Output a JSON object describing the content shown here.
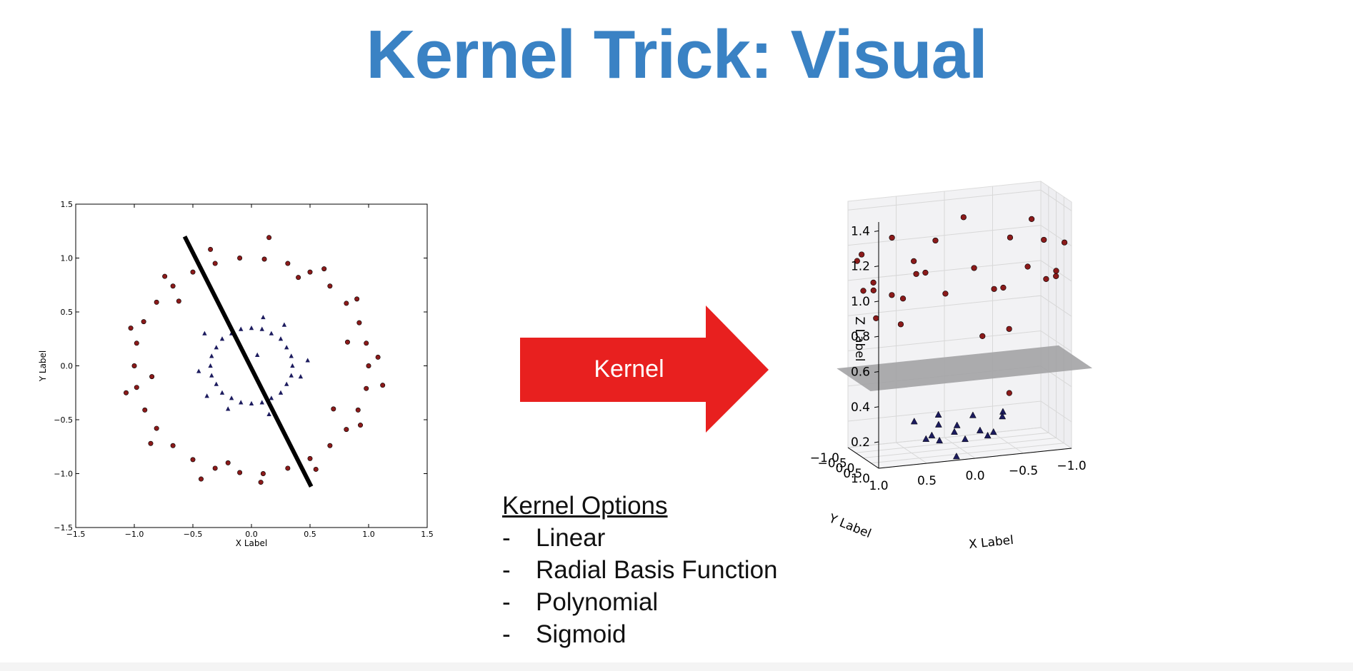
{
  "title": "Kernel Trick: Visual",
  "arrow": {
    "label": "Kernel",
    "color": "#e8201f"
  },
  "kernel_options": {
    "header": "Kernel Options",
    "bullet": "-",
    "items": [
      "Linear",
      "Radial Basis Function",
      "Polynomial",
      "Sigmoid"
    ]
  },
  "colors": {
    "title": "#3a82c4",
    "outer_class": "#8b1a1a",
    "inner_class": "#1c1b5e",
    "plane": "#a3a3a5"
  },
  "chart_data": [
    {
      "type": "scatter",
      "title": "",
      "xlabel": "X Label",
      "ylabel": "Y Label",
      "xlim": [
        -1.5,
        1.5
      ],
      "ylim": [
        -1.5,
        1.5
      ],
      "xticks": [
        "−1.5",
        "−1.0",
        "−0.5",
        "0.0",
        "0.5",
        "1.0",
        "1.5"
      ],
      "yticks": [
        "1.5",
        "1.0",
        "0.5",
        "0.0",
        "−0.5",
        "−1.0",
        "−1.5"
      ],
      "grid": false,
      "series": [
        {
          "marker": "circle",
          "color": "#8b1a1a",
          "points": [
            [
              1.0,
              0.0
            ],
            [
              0.98,
              0.21
            ],
            [
              0.92,
              0.4
            ],
            [
              0.81,
              0.58
            ],
            [
              0.67,
              0.74
            ],
            [
              0.5,
              0.87
            ],
            [
              0.31,
              0.95
            ],
            [
              0.11,
              0.99
            ],
            [
              -0.1,
              1.0
            ],
            [
              -0.31,
              0.95
            ],
            [
              -0.5,
              0.87
            ],
            [
              -0.67,
              0.74
            ],
            [
              -0.81,
              0.59
            ],
            [
              -0.92,
              0.41
            ],
            [
              -0.98,
              0.21
            ],
            [
              -1.0,
              0.0
            ],
            [
              -0.98,
              -0.2
            ],
            [
              -0.91,
              -0.41
            ],
            [
              -0.81,
              -0.58
            ],
            [
              -0.67,
              -0.74
            ],
            [
              -0.5,
              -0.87
            ],
            [
              -0.31,
              -0.95
            ],
            [
              -0.1,
              -0.99
            ],
            [
              0.1,
              -1.0
            ],
            [
              0.31,
              -0.95
            ],
            [
              0.5,
              -0.86
            ],
            [
              0.67,
              -0.74
            ],
            [
              0.81,
              -0.59
            ],
            [
              0.91,
              -0.41
            ],
            [
              0.98,
              -0.21
            ],
            [
              1.08,
              0.08
            ],
            [
              0.9,
              0.62
            ],
            [
              0.62,
              0.9
            ],
            [
              0.15,
              1.19
            ],
            [
              -0.35,
              1.08
            ],
            [
              -0.74,
              0.83
            ],
            [
              -1.03,
              0.35
            ],
            [
              -1.07,
              -0.25
            ],
            [
              -0.86,
              -0.72
            ],
            [
              -0.43,
              -1.05
            ],
            [
              0.08,
              -1.08
            ],
            [
              0.55,
              -0.96
            ],
            [
              0.93,
              -0.55
            ],
            [
              1.12,
              -0.18
            ],
            [
              0.4,
              0.82
            ],
            [
              -0.62,
              0.6
            ],
            [
              -0.85,
              -0.1
            ],
            [
              -0.2,
              -0.9
            ],
            [
              0.7,
              -0.4
            ],
            [
              0.82,
              0.22
            ]
          ]
        },
        {
          "marker": "triangle",
          "color": "#1c1b5e",
          "points": [
            [
              0.35,
              0.0
            ],
            [
              0.34,
              0.09
            ],
            [
              0.3,
              0.17
            ],
            [
              0.25,
              0.25
            ],
            [
              0.17,
              0.3
            ],
            [
              0.09,
              0.34
            ],
            [
              0.0,
              0.35
            ],
            [
              -0.09,
              0.34
            ],
            [
              -0.17,
              0.3
            ],
            [
              -0.25,
              0.25
            ],
            [
              -0.3,
              0.17
            ],
            [
              -0.34,
              0.09
            ],
            [
              -0.35,
              0.0
            ],
            [
              -0.34,
              -0.09
            ],
            [
              -0.3,
              -0.17
            ],
            [
              -0.25,
              -0.25
            ],
            [
              -0.17,
              -0.3
            ],
            [
              -0.09,
              -0.34
            ],
            [
              0.0,
              -0.35
            ],
            [
              0.09,
              -0.34
            ],
            [
              0.17,
              -0.3
            ],
            [
              0.25,
              -0.25
            ],
            [
              0.3,
              -0.17
            ],
            [
              0.34,
              -0.09
            ],
            [
              0.48,
              0.05
            ],
            [
              0.42,
              -0.1
            ],
            [
              0.1,
              0.45
            ],
            [
              -0.4,
              0.3
            ],
            [
              -0.45,
              -0.05
            ],
            [
              -0.2,
              -0.4
            ],
            [
              0.15,
              -0.45
            ],
            [
              0.05,
              0.1
            ],
            [
              0.28,
              0.38
            ],
            [
              -0.38,
              -0.28
            ]
          ]
        }
      ],
      "annotations": [
        {
          "type": "separator_line",
          "from": [
            -0.57,
            1.2
          ],
          "to": [
            0.51,
            -1.12
          ]
        }
      ]
    },
    {
      "type": "scatter",
      "projection": "3d",
      "title": "",
      "xlabel": "X Label",
      "ylabel": "Y Label",
      "zlabel": "Z Label",
      "xticks": [
        "1.0",
        "0.5",
        "0.0",
        "−0.5",
        "−1.0"
      ],
      "yticks": [
        "−1.0",
        "−0.5",
        "0.0",
        "0.5",
        "1.0"
      ],
      "zticks": [
        "1.4",
        "1.2",
        "1.0",
        "0.8",
        "0.6",
        "0.4",
        "0.2"
      ],
      "xlim": [
        -1.0,
        1.0
      ],
      "ylim": [
        -1.0,
        1.0
      ],
      "zlim": [
        0.05,
        1.45
      ],
      "grid": true,
      "separating_plane_z": 0.5,
      "series": [
        {
          "marker": "circle",
          "color": "#8b1a1a",
          "description_z": "x^2 + y^2 (outer ring)",
          "points_xyz": [
            [
              1.0,
              0.0,
              1.0
            ],
            [
              0.8,
              0.6,
              1.0
            ],
            [
              0.3,
              0.95,
              1.0
            ],
            [
              -0.3,
              0.95,
              1.0
            ],
            [
              -0.8,
              0.6,
              1.0
            ],
            [
              -1.0,
              0.0,
              1.0
            ],
            [
              -0.8,
              -0.6,
              1.0
            ],
            [
              -0.3,
              -0.95,
              1.0
            ],
            [
              0.3,
              -0.95,
              1.0
            ],
            [
              0.8,
              -0.6,
              1.0
            ],
            [
              1.08,
              0.1,
              1.18
            ],
            [
              0.62,
              0.9,
              1.2
            ],
            [
              -0.35,
              1.08,
              1.29
            ],
            [
              -1.03,
              0.35,
              1.18
            ],
            [
              -0.86,
              -0.72,
              1.26
            ],
            [
              0.08,
              -1.08,
              1.17
            ],
            [
              0.93,
              -0.55,
              1.17
            ],
            [
              0.9,
              0.2,
              0.85
            ],
            [
              -0.1,
              0.85,
              0.73
            ],
            [
              -0.6,
              -0.55,
              0.66
            ],
            [
              0.5,
              -0.7,
              0.74
            ],
            [
              0.15,
              1.19,
              1.44
            ],
            [
              -0.74,
              0.83,
              1.24
            ],
            [
              0.55,
              -0.96,
              1.22
            ],
            [
              -0.45,
              0.4,
              0.36
            ],
            [
              0.95,
              0.35,
              1.02
            ],
            [
              -0.95,
              0.3,
              0.99
            ],
            [
              0.2,
              -0.98,
              1.0
            ],
            [
              -0.2,
              0.98,
              1.0
            ],
            [
              0.7,
              0.7,
              0.98
            ]
          ]
        },
        {
          "marker": "triangle",
          "color": "#1c1b5e",
          "description_z": "x^2 + y^2 (inner cluster)",
          "points_xyz": [
            [
              0.35,
              0.0,
              0.12
            ],
            [
              0.25,
              0.25,
              0.12
            ],
            [
              0.0,
              0.35,
              0.12
            ],
            [
              -0.25,
              0.25,
              0.12
            ],
            [
              -0.35,
              0.0,
              0.12
            ],
            [
              -0.25,
              -0.25,
              0.12
            ],
            [
              0.0,
              -0.35,
              0.12
            ],
            [
              0.25,
              -0.25,
              0.12
            ],
            [
              0.48,
              0.05,
              0.23
            ],
            [
              0.1,
              0.45,
              0.21
            ],
            [
              -0.4,
              0.3,
              0.25
            ],
            [
              -0.45,
              -0.05,
              0.2
            ],
            [
              -0.2,
              -0.4,
              0.2
            ],
            [
              0.15,
              -0.45,
              0.22
            ],
            [
              0.05,
              0.1,
              0.01
            ],
            [
              0.28,
              0.38,
              0.22
            ]
          ]
        }
      ]
    }
  ]
}
